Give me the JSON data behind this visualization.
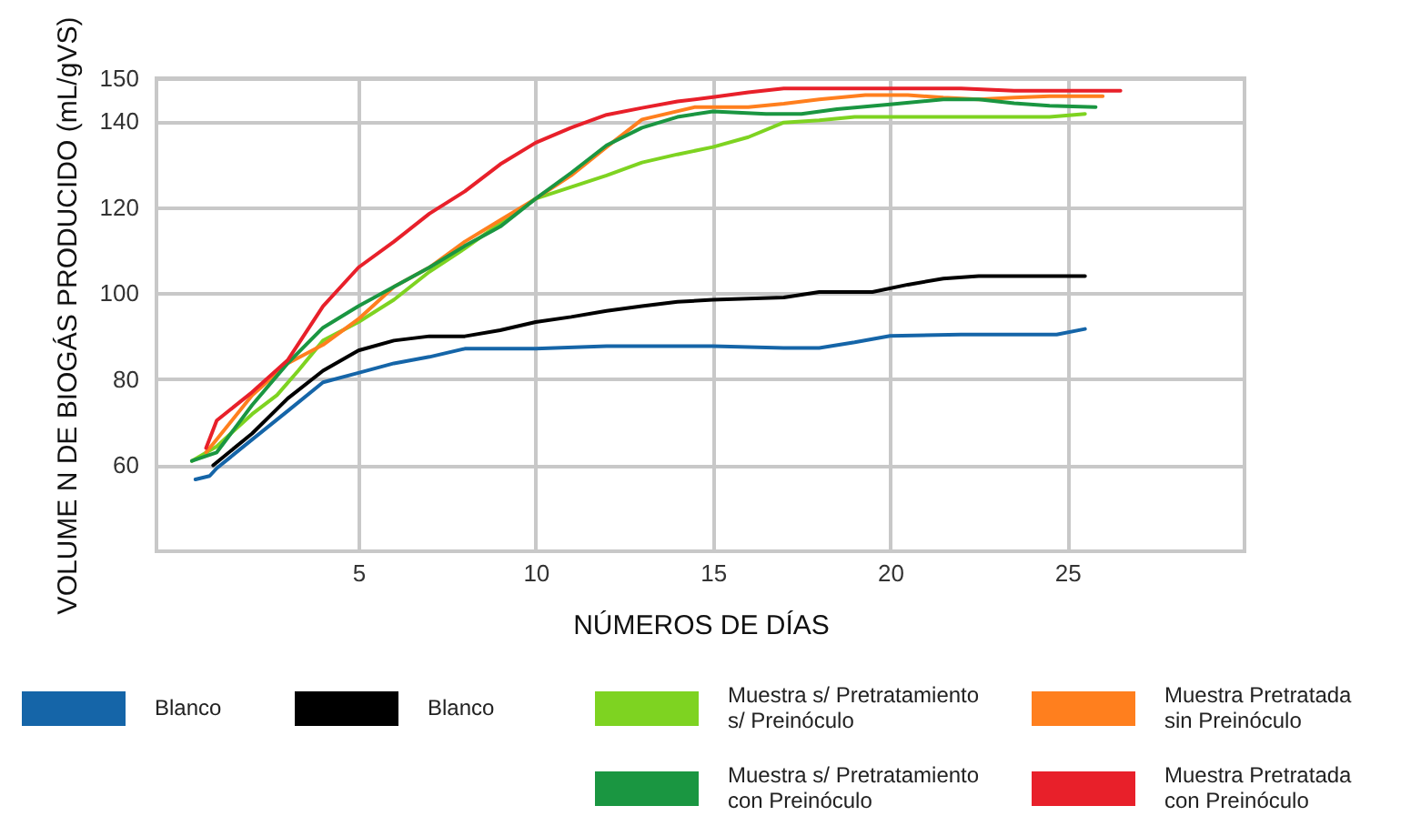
{
  "chart_data": {
    "type": "line",
    "xlabel": "NÚMEROS DE DÍAS",
    "ylabel": "VOLUME N DE BIOGÁS PRODUCIDO (mL/gVS)",
    "xlim": [
      -0.7,
      30
    ],
    "xticks": [
      5,
      10,
      15,
      20,
      25
    ],
    "ylim": [
      40,
      150
    ],
    "yticks": [
      60,
      80,
      100,
      120,
      140,
      150
    ],
    "grid": true,
    "legend": "bottom",
    "line_style": "solid",
    "series": [
      {
        "name": "Blanco",
        "color": "#1565a8",
        "x": [
          0.4,
          0.8,
          1,
          2,
          3,
          4,
          5,
          6,
          7,
          8,
          10,
          12,
          15,
          17,
          18,
          19,
          20,
          22,
          24.7,
          25.5
        ],
        "values": [
          56.7,
          57.5,
          59.3,
          66,
          72.6,
          79.3,
          81.5,
          83.7,
          85.2,
          87.1,
          87.1,
          87.7,
          87.7,
          87.3,
          87.3,
          88.6,
          90.1,
          90.4,
          90.4,
          91.7
        ]
      },
      {
        "name": "Blanco",
        "color": "#000000",
        "x": [
          0.9,
          2,
          3,
          4,
          5,
          6,
          7,
          8,
          9,
          10,
          11,
          12,
          13,
          14,
          15,
          17,
          18,
          19.5,
          20.5,
          21.5,
          22.5,
          25.5
        ],
        "values": [
          60,
          67.4,
          75.5,
          82,
          86.7,
          89,
          90,
          90,
          91.4,
          93.3,
          94.5,
          95.9,
          97,
          98,
          98.5,
          99,
          100.3,
          100.3,
          102,
          103.4,
          104,
          104
        ]
      },
      {
        "name": "Muestra s/ Pretratamiento s/ Preinóculo",
        "color": "#7ed321",
        "x": [
          0.3,
          1,
          2,
          2.7,
          3.3,
          4,
          5,
          6,
          7,
          8,
          9,
          10,
          11,
          12,
          13,
          14,
          15,
          16,
          17,
          18,
          19,
          24.5,
          25.5
        ],
        "values": [
          61,
          64.4,
          71.9,
          76.3,
          82,
          89,
          93.3,
          98.5,
          105,
          110.4,
          116.3,
          122,
          124.7,
          127.4,
          130.4,
          132.3,
          134,
          136.3,
          139.7,
          140.2,
          141,
          141,
          141.7
        ]
      },
      {
        "name": "Muestra Pretratada sin Preinóculo",
        "color": "#ff7f1e",
        "x": [
          0.7,
          1,
          2,
          3,
          4,
          5,
          6,
          7,
          8,
          9,
          10,
          11,
          12,
          13,
          14.5,
          16,
          17,
          18,
          19.3,
          20.5,
          21.5,
          22.5,
          23.5,
          24.5,
          26
        ],
        "values": [
          63,
          66,
          76.3,
          83.7,
          88,
          94,
          101.5,
          106,
          112,
          117,
          122,
          127.4,
          134,
          140.4,
          143.3,
          143.3,
          144.1,
          145.1,
          146.1,
          146.1,
          145.5,
          145.1,
          145.5,
          145.8,
          145.8
        ]
      },
      {
        "name": "Muestra s/ Pretratamiento con Preinóculo",
        "color": "#1a9641",
        "x": [
          0.3,
          1,
          2,
          3,
          4,
          5,
          6,
          7,
          8,
          9,
          10,
          11,
          12,
          13,
          14,
          15,
          16.5,
          17.5,
          18.5,
          20,
          21.5,
          22.5,
          23.5,
          24.5,
          25.8
        ],
        "values": [
          61,
          63,
          74,
          83.7,
          92,
          97,
          101.5,
          106,
          111,
          115.5,
          122,
          128,
          134.4,
          138.5,
          141,
          142.3,
          141.7,
          141.7,
          142.8,
          143.9,
          145.1,
          145.1,
          144.2,
          143.6,
          143.3
        ]
      },
      {
        "name": "Muestra  Pretratada con Preinóculo",
        "color": "#e8202a",
        "x": [
          0.7,
          1,
          2,
          3,
          4,
          5,
          6,
          7,
          8,
          9,
          10,
          11,
          12,
          13,
          14,
          15,
          16,
          17,
          22,
          23.5,
          26.5
        ],
        "values": [
          64,
          70.4,
          77,
          84.4,
          97,
          106,
          112,
          118.5,
          123.7,
          130,
          135,
          138.5,
          141.5,
          143.1,
          144.6,
          145.6,
          146.7,
          147.6,
          147.6,
          147.1,
          147.1
        ]
      }
    ]
  }
}
